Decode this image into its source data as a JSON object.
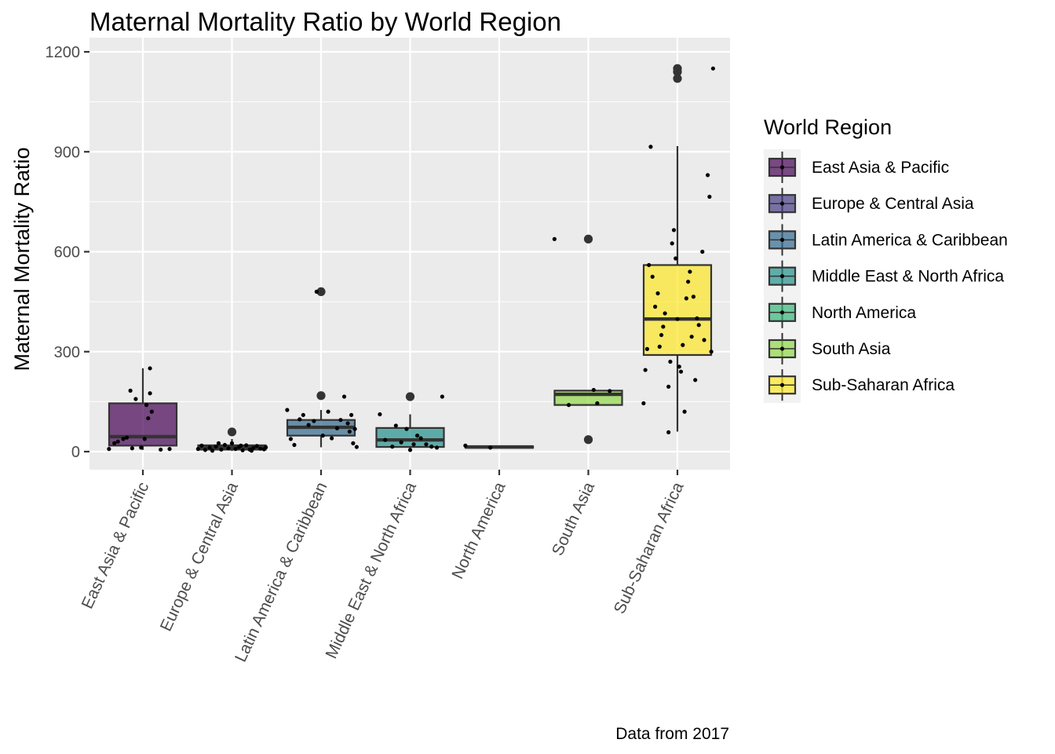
{
  "chart_data": {
    "type": "boxplot",
    "title": "Maternal Mortality Ratio by World Region",
    "xlabel": "",
    "ylabel": "Maternal Mortality Ratio",
    "caption": "Data from 2017",
    "ylim": [
      -55,
      1220
    ],
    "yticks": [
      0,
      300,
      600,
      900,
      1200
    ],
    "grid": true,
    "legend_title": "World Region",
    "legend_position": "right",
    "categories": [
      "East Asia & Pacific",
      "Europe & Central Asia",
      "Latin America & Caribbean",
      "Middle East & North Africa",
      "North America",
      "South Asia",
      "Sub-Saharan Africa"
    ],
    "colors": [
      "#440154",
      "#443A83",
      "#31688E",
      "#21908C",
      "#35B779",
      "#8FD744",
      "#FDE725"
    ],
    "boxes": [
      {
        "name": "East Asia & Pacific",
        "whisker_low": 5,
        "q1": 18,
        "median": 45,
        "q3": 145,
        "whisker_high": 250,
        "outliers": []
      },
      {
        "name": "Europe & Central Asia",
        "whisker_low": 2,
        "q1": 6,
        "median": 12,
        "q3": 19,
        "whisker_high": 38,
        "outliers": [
          59
        ]
      },
      {
        "name": "Latin America & Caribbean",
        "whisker_low": 13,
        "q1": 48,
        "median": 73,
        "q3": 95,
        "whisker_high": 125,
        "outliers": [
          168,
          480
        ]
      },
      {
        "name": "Middle East & North Africa",
        "whisker_low": 3,
        "q1": 14,
        "median": 35,
        "q3": 71,
        "whisker_high": 112,
        "outliers": [
          165
        ]
      },
      {
        "name": "North America",
        "whisker_low": 10,
        "q1": 12,
        "median": 14,
        "q3": 16,
        "whisker_high": 18,
        "outliers": []
      },
      {
        "name": "South Asia",
        "whisker_low": 140,
        "q1": 140,
        "median": 172,
        "q3": 183,
        "whisker_high": 183,
        "outliers": [
          36,
          638
        ]
      },
      {
        "name": "Sub-Saharan Africa",
        "whisker_low": 60,
        "q1": 290,
        "median": 398,
        "q3": 560,
        "whisker_high": 917,
        "outliers": [
          1120,
          1140,
          1150
        ]
      }
    ],
    "points": [
      [
        [
          -0.38,
          8
        ],
        [
          -0.32,
          25
        ],
        [
          -0.28,
          30
        ],
        [
          -0.22,
          38
        ],
        [
          -0.18,
          42
        ],
        [
          -0.14,
          183
        ],
        [
          -0.12,
          10
        ],
        [
          -0.08,
          158
        ],
        [
          -0.02,
          12
        ],
        [
          0.02,
          38
        ],
        [
          0.04,
          140
        ],
        [
          0.06,
          100
        ],
        [
          0.08,
          175
        ],
        [
          0.08,
          250
        ],
        [
          0.1,
          120
        ],
        [
          0.2,
          6
        ],
        [
          0.3,
          8
        ]
      ],
      [
        [
          -0.38,
          8
        ],
        [
          -0.34,
          18
        ],
        [
          -0.3,
          5
        ],
        [
          -0.25,
          12
        ],
        [
          -0.22,
          3
        ],
        [
          -0.18,
          15
        ],
        [
          -0.12,
          6
        ],
        [
          -0.08,
          20
        ],
        [
          -0.04,
          10
        ],
        [
          0.0,
          25
        ],
        [
          0.04,
          8
        ],
        [
          0.08,
          14
        ],
        [
          0.12,
          4
        ],
        [
          0.16,
          19
        ],
        [
          0.2,
          6
        ],
        [
          0.24,
          11
        ],
        [
          0.28,
          17
        ],
        [
          0.32,
          9
        ],
        [
          0.36,
          7
        ],
        [
          0.38,
          13
        ],
        [
          0.1,
          18
        ],
        [
          -0.15,
          25
        ],
        [
          0.22,
          3
        ]
      ],
      [
        [
          -0.38,
          125
        ],
        [
          -0.34,
          38
        ],
        [
          -0.3,
          20
        ],
        [
          -0.24,
          97
        ],
        [
          -0.2,
          110
        ],
        [
          -0.14,
          80
        ],
        [
          -0.08,
          92
        ],
        [
          0.02,
          48
        ],
        [
          0.08,
          120
        ],
        [
          0.12,
          40
        ],
        [
          0.18,
          70
        ],
        [
          0.22,
          95
        ],
        [
          0.26,
          165
        ],
        [
          0.3,
          85
        ],
        [
          0.32,
          60
        ],
        [
          0.34,
          110
        ],
        [
          0.36,
          25
        ],
        [
          0.38,
          68
        ],
        [
          0.4,
          14
        ],
        [
          -0.05,
          480
        ]
      ],
      [
        [
          -0.34,
          112
        ],
        [
          -0.28,
          35
        ],
        [
          -0.2,
          15
        ],
        [
          -0.16,
          78
        ],
        [
          -0.1,
          28
        ],
        [
          -0.04,
          68
        ],
        [
          0.0,
          5
        ],
        [
          0.04,
          22
        ],
        [
          0.08,
          48
        ],
        [
          0.12,
          40
        ],
        [
          0.18,
          22
        ],
        [
          0.24,
          15
        ],
        [
          0.3,
          12
        ],
        [
          0.36,
          165
        ]
      ],
      [
        [
          -0.38,
          18
        ],
        [
          -0.1,
          12
        ]
      ],
      [
        [
          -0.38,
          638
        ],
        [
          -0.22,
          140
        ],
        [
          0.06,
          185
        ],
        [
          0.1,
          145
        ],
        [
          0.24,
          182
        ]
      ],
      [
        [
          -0.38,
          145
        ],
        [
          -0.36,
          245
        ],
        [
          -0.34,
          308
        ],
        [
          -0.32,
          560
        ],
        [
          -0.3,
          915
        ],
        [
          -0.28,
          525
        ],
        [
          -0.25,
          435
        ],
        [
          -0.22,
          475
        ],
        [
          -0.2,
          315
        ],
        [
          -0.16,
          375
        ],
        [
          -0.1,
          58
        ],
        [
          -0.1,
          195
        ],
        [
          -0.08,
          270
        ],
        [
          -0.06,
          625
        ],
        [
          -0.04,
          665
        ],
        [
          -0.02,
          580
        ],
        [
          0.0,
          398
        ],
        [
          0.02,
          255
        ],
        [
          0.04,
          240
        ],
        [
          0.08,
          120
        ],
        [
          0.1,
          460
        ],
        [
          0.12,
          510
        ],
        [
          0.14,
          540
        ],
        [
          0.16,
          345
        ],
        [
          0.2,
          215
        ],
        [
          0.24,
          380
        ],
        [
          0.28,
          600
        ],
        [
          0.3,
          335
        ],
        [
          0.34,
          830
        ],
        [
          0.36,
          765
        ],
        [
          0.38,
          300
        ],
        [
          0.4,
          1150
        ],
        [
          -0.14,
          415
        ],
        [
          0.06,
          320
        ],
        [
          0.18,
          465
        ],
        [
          -0.18,
          350
        ],
        [
          0.22,
          400
        ]
      ]
    ]
  }
}
